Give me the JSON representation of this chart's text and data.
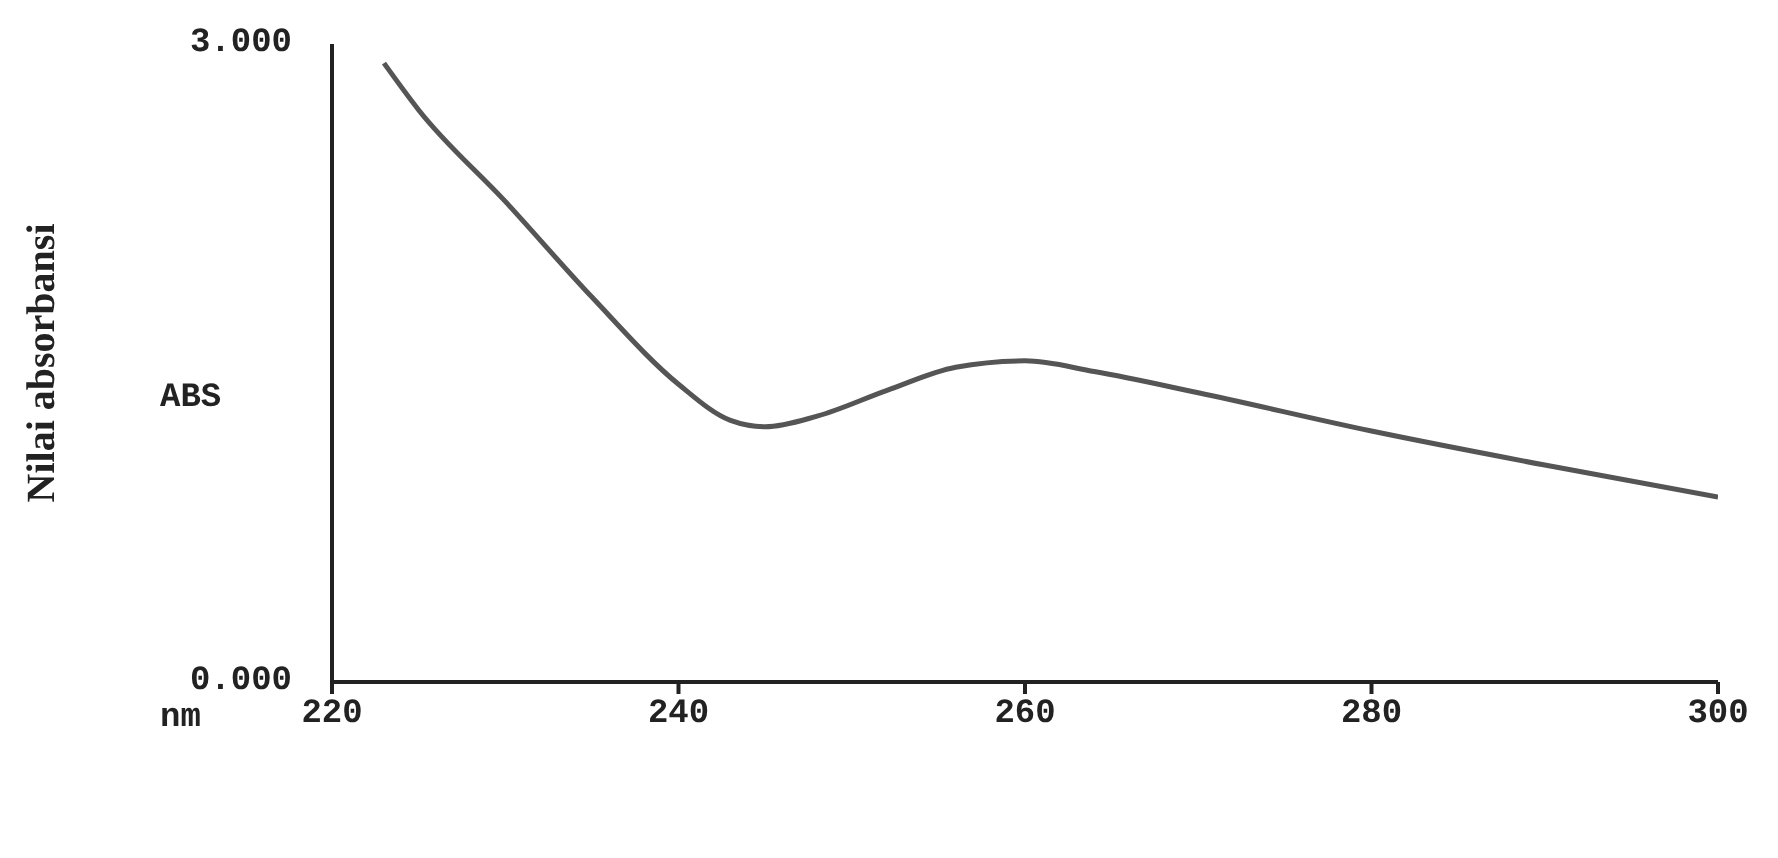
{
  "chart_data": {
    "type": "line",
    "xlabel": "nm",
    "ylabel": "Nilai absorbansi",
    "annotations": [
      "ABS"
    ],
    "x": [
      223,
      225,
      230,
      235,
      240,
      243,
      245,
      248,
      252,
      256,
      260,
      264,
      270,
      280,
      290,
      300
    ],
    "series": [
      {
        "color": "#555555",
        "values": [
          2.91,
          2.69,
          2.26,
          1.81,
          1.4,
          1.23,
          1.2,
          1.25,
          1.37,
          1.48,
          1.51,
          1.46,
          1.36,
          1.18,
          1.02,
          0.87
        ]
      }
    ],
    "xlim": [
      220,
      300
    ],
    "xticks": [
      220,
      240,
      260,
      280,
      300
    ],
    "ylim": [
      0,
      3
    ],
    "yticks": [
      {
        "value": 0,
        "label": "0.000"
      },
      {
        "value": 3,
        "label": "3.000"
      }
    ],
    "grid": false,
    "legend": false,
    "marker": "none",
    "line_style": "solid"
  }
}
